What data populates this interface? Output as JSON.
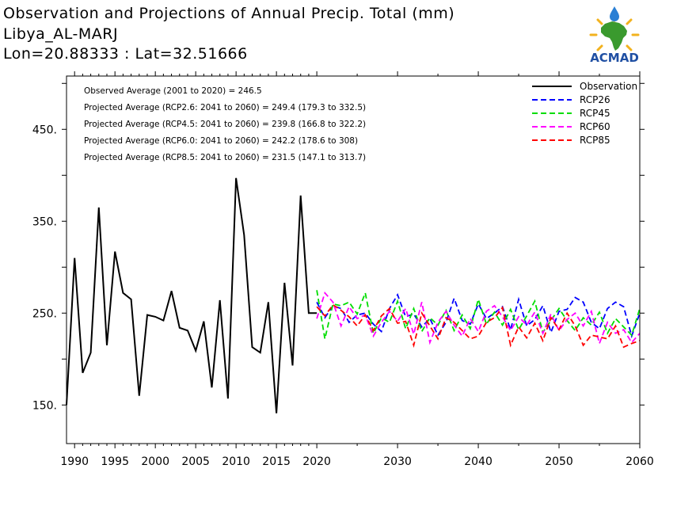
{
  "title": {
    "line1": "Observation and Projections of Annual Precip. Total (mm)",
    "line2": "Libya_AL-MARJ",
    "line3": "Lon=20.88333 : Lat=32.51666"
  },
  "logo": {
    "text": "ACMAD"
  },
  "chart_data": {
    "type": "line",
    "xlim": [
      1989,
      2060
    ],
    "ylim": [
      108,
      508
    ],
    "x_ticks": [
      1990,
      1995,
      2000,
      2005,
      2010,
      2015,
      2020,
      2030,
      2040,
      2050,
      2060
    ],
    "y_ticks": [
      150,
      250,
      350,
      450
    ],
    "y_tick_labels": [
      "150.",
      "250.",
      "350.",
      "450."
    ],
    "grid": false,
    "legend_position": "top-right",
    "annotations": [
      "Observed Average (2001 to 2020) = 246.5",
      "Projected Average (RCP2.6: 2041 to 2060) = 249.4 (179.3 to 332.5)",
      "Projected Average (RCP4.5: 2041 to 2060) = 239.8 (166.8 to 322.2)",
      "Projected Average (RCP6.0: 2041 to 2060) = 242.2 (178.6 to 308)",
      "Projected Average (RCP8.5: 2041 to 2060) = 231.5 (147.1 to 313.7)"
    ],
    "series": [
      {
        "name": "Observation",
        "color": "#000000",
        "dashed": false,
        "x": [
          1989,
          1990,
          1991,
          1992,
          1993,
          1994,
          1995,
          1996,
          1997,
          1998,
          1999,
          2000,
          2001,
          2002,
          2003,
          2004,
          2005,
          2006,
          2007,
          2008,
          2009,
          2010,
          2011,
          2012,
          2013,
          2014,
          2015,
          2016,
          2017,
          2018,
          2019,
          2020
        ],
        "y": [
          150,
          310,
          185,
          207,
          365,
          215,
          317,
          272,
          265,
          160,
          248,
          246,
          242,
          274,
          234,
          231,
          209,
          241,
          169,
          264,
          157,
          397,
          335,
          213,
          207,
          262,
          141,
          283,
          193,
          378,
          250,
          250
        ]
      },
      {
        "name": "RCP26",
        "color": "#0000ff",
        "dashed": true,
        "x": [
          2020,
          2021,
          2022,
          2023,
          2024,
          2025,
          2026,
          2027,
          2028,
          2029,
          2030,
          2031,
          2032,
          2033,
          2034,
          2035,
          2036,
          2037,
          2038,
          2039,
          2040,
          2041,
          2042,
          2043,
          2044,
          2045,
          2046,
          2047,
          2048,
          2049,
          2050,
          2051,
          2052,
          2053,
          2054,
          2055,
          2056,
          2057,
          2058,
          2059,
          2060
        ],
        "y": [
          262,
          245,
          258,
          255,
          240,
          248,
          250,
          238,
          230,
          255,
          270,
          246,
          249,
          235,
          244,
          226,
          240,
          266,
          242,
          238,
          260,
          244,
          250,
          257,
          232,
          265,
          236,
          243,
          258,
          229,
          252,
          254,
          267,
          262,
          240,
          233,
          255,
          262,
          257,
          225,
          250
        ]
      },
      {
        "name": "RCP45",
        "color": "#00dd00",
        "dashed": true,
        "x": [
          2020,
          2021,
          2022,
          2023,
          2024,
          2025,
          2026,
          2027,
          2028,
          2029,
          2030,
          2031,
          2032,
          2033,
          2034,
          2035,
          2036,
          2037,
          2038,
          2039,
          2040,
          2041,
          2042,
          2043,
          2044,
          2045,
          2046,
          2047,
          2048,
          2049,
          2050,
          2051,
          2052,
          2053,
          2054,
          2055,
          2056,
          2057,
          2058,
          2059,
          2060
        ],
        "y": [
          275,
          222,
          260,
          258,
          262,
          249,
          272,
          228,
          245,
          240,
          263,
          233,
          255,
          230,
          245,
          237,
          253,
          231,
          248,
          233,
          265,
          238,
          251,
          237,
          254,
          232,
          247,
          263,
          229,
          242,
          255,
          242,
          231,
          245,
          237,
          251,
          228,
          244,
          235,
          226,
          255
        ]
      },
      {
        "name": "RCP60",
        "color": "#ff00ff",
        "dashed": true,
        "x": [
          2020,
          2021,
          2022,
          2023,
          2024,
          2025,
          2026,
          2027,
          2028,
          2029,
          2030,
          2031,
          2032,
          2033,
          2034,
          2035,
          2036,
          2037,
          2038,
          2039,
          2040,
          2041,
          2042,
          2043,
          2044,
          2045,
          2046,
          2047,
          2048,
          2049,
          2050,
          2051,
          2052,
          2053,
          2054,
          2055,
          2056,
          2057,
          2058,
          2059,
          2060
        ],
        "y": [
          244,
          272,
          262,
          236,
          257,
          244,
          248,
          225,
          240,
          252,
          241,
          255,
          227,
          262,
          218,
          240,
          252,
          237,
          225,
          244,
          230,
          252,
          258,
          246,
          231,
          246,
          237,
          251,
          228,
          249,
          231,
          243,
          250,
          236,
          252,
          217,
          240,
          228,
          232,
          218,
          228
        ]
      },
      {
        "name": "RCP85",
        "color": "#ff0000",
        "dashed": true,
        "x": [
          2020,
          2021,
          2022,
          2023,
          2024,
          2025,
          2026,
          2027,
          2028,
          2029,
          2030,
          2031,
          2032,
          2033,
          2034,
          2035,
          2036,
          2037,
          2038,
          2039,
          2040,
          2041,
          2042,
          2043,
          2044,
          2045,
          2046,
          2047,
          2048,
          2049,
          2050,
          2051,
          2052,
          2053,
          2054,
          2055,
          2056,
          2057,
          2058,
          2059,
          2060
        ],
        "y": [
          257,
          247,
          259,
          253,
          246,
          236,
          248,
          231,
          247,
          255,
          239,
          241,
          215,
          250,
          236,
          222,
          245,
          240,
          231,
          222,
          225,
          240,
          245,
          256,
          215,
          235,
          223,
          239,
          220,
          245,
          232,
          250,
          236,
          215,
          226,
          224,
          222,
          236,
          213,
          217,
          220
        ]
      }
    ]
  }
}
